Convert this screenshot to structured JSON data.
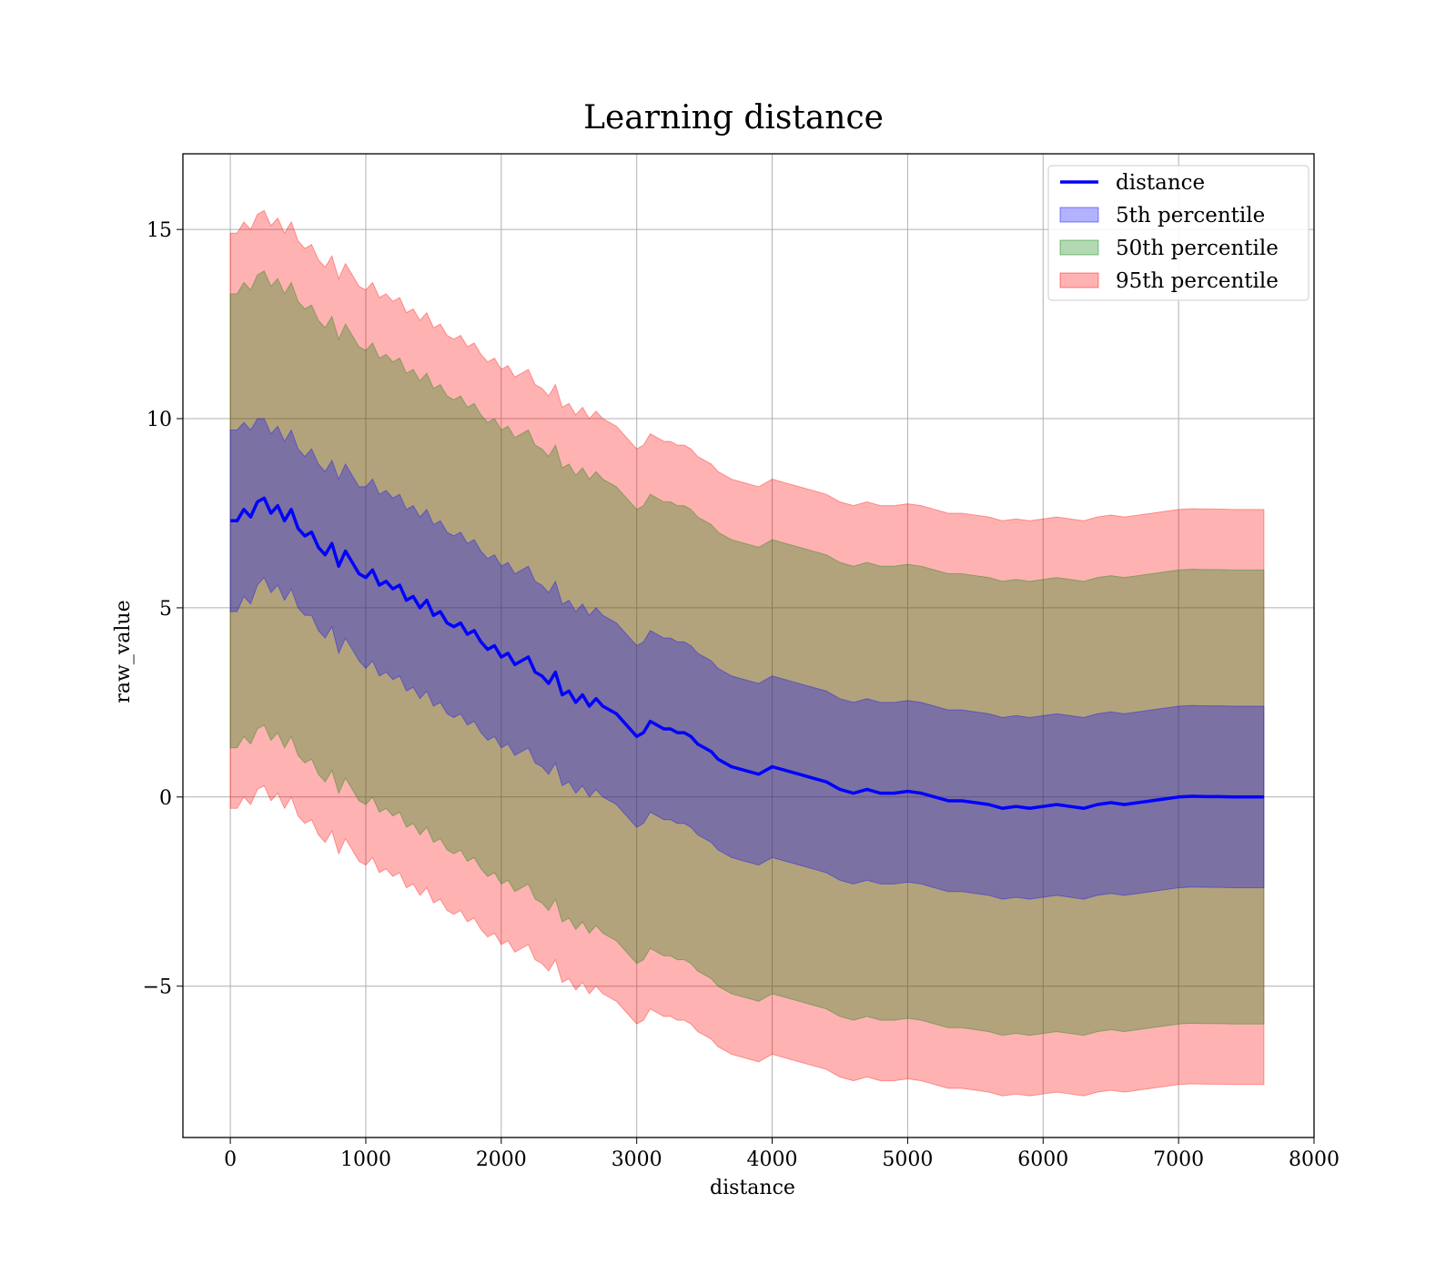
{
  "chart_data": {
    "type": "line",
    "title": "Learning distance",
    "xlabel": "distance",
    "ylabel": "raw_value",
    "xlim": [
      -350,
      8000
    ],
    "ylim": [
      -9.0,
      17.0
    ],
    "xticks": [
      0,
      1000,
      2000,
      3000,
      4000,
      5000,
      6000,
      7000,
      8000
    ],
    "xtick_labels": [
      "0",
      "1000",
      "2000",
      "3000",
      "4000",
      "5000",
      "6000",
      "7000",
      "8000"
    ],
    "yticks": [
      -5,
      0,
      5,
      10,
      15
    ],
    "ytick_labels": [
      "−5",
      "0",
      "5",
      "10",
      "15"
    ],
    "grid": true,
    "legend_position": "top-right",
    "series": [
      {
        "name": "distance",
        "kind": "line",
        "color": "#0000ff",
        "x": [
          0,
          50,
          100,
          150,
          200,
          250,
          300,
          350,
          400,
          450,
          500,
          550,
          600,
          650,
          700,
          750,
          800,
          850,
          900,
          950,
          1000,
          1050,
          1100,
          1150,
          1200,
          1250,
          1300,
          1350,
          1400,
          1450,
          1500,
          1550,
          1600,
          1650,
          1700,
          1750,
          1800,
          1850,
          1900,
          1950,
          2000,
          2050,
          2100,
          2150,
          2200,
          2250,
          2300,
          2350,
          2400,
          2450,
          2500,
          2550,
          2600,
          2650,
          2700,
          2750,
          2800,
          2850,
          2900,
          2950,
          3000,
          3050,
          3100,
          3150,
          3200,
          3250,
          3300,
          3350,
          3400,
          3450,
          3500,
          3550,
          3600,
          3700,
          3800,
          3900,
          4000,
          4100,
          4200,
          4300,
          4400,
          4500,
          4600,
          4700,
          4800,
          4900,
          5000,
          5100,
          5200,
          5300,
          5400,
          5500,
          5600,
          5700,
          5800,
          5900,
          6000,
          6100,
          6200,
          6300,
          6400,
          6500,
          6600,
          6700,
          6800,
          6900,
          7000,
          7100,
          7200,
          7300,
          7400,
          7500,
          7630
        ],
        "y": [
          7.3,
          7.3,
          7.6,
          7.4,
          7.8,
          7.9,
          7.5,
          7.7,
          7.3,
          7.6,
          7.1,
          6.9,
          7.0,
          6.6,
          6.4,
          6.7,
          6.1,
          6.5,
          6.2,
          5.9,
          5.8,
          6.0,
          5.6,
          5.7,
          5.5,
          5.6,
          5.2,
          5.3,
          5.0,
          5.2,
          4.8,
          4.9,
          4.6,
          4.5,
          4.6,
          4.3,
          4.4,
          4.1,
          3.9,
          4.0,
          3.7,
          3.8,
          3.5,
          3.6,
          3.7,
          3.3,
          3.2,
          3.0,
          3.3,
          2.7,
          2.8,
          2.5,
          2.7,
          2.4,
          2.6,
          2.4,
          2.3,
          2.2,
          2.0,
          1.8,
          1.6,
          1.7,
          2.0,
          1.9,
          1.8,
          1.8,
          1.7,
          1.7,
          1.6,
          1.4,
          1.3,
          1.2,
          1.0,
          0.8,
          0.7,
          0.6,
          0.8,
          0.7,
          0.6,
          0.5,
          0.4,
          0.2,
          0.1,
          0.2,
          0.1,
          0.1,
          0.15,
          0.1,
          0.0,
          -0.1,
          -0.1,
          -0.15,
          -0.2,
          -0.3,
          -0.25,
          -0.3,
          -0.25,
          -0.2,
          -0.25,
          -0.3,
          -0.2,
          -0.15,
          -0.2,
          -0.15,
          -0.1,
          -0.05,
          0.0,
          0.02,
          0.01,
          0.01,
          0.0,
          0.0,
          0.0
        ]
      },
      {
        "name": "5th percentile",
        "kind": "band",
        "color": "#0000ff",
        "half_width": [
          2.4,
          2.4,
          2.3,
          2.3,
          2.2,
          2.1,
          2.1,
          2.1,
          2.1,
          2.1,
          2.1,
          2.1,
          2.2,
          2.2,
          2.2,
          2.2,
          2.3,
          2.3,
          2.3,
          2.3,
          2.4,
          2.4,
          2.4,
          2.4,
          2.4,
          2.4,
          2.4,
          2.4,
          2.4,
          2.4,
          2.4,
          2.4,
          2.4,
          2.4,
          2.4,
          2.4,
          2.4,
          2.4,
          2.4,
          2.4,
          2.4,
          2.4,
          2.4,
          2.4,
          2.4,
          2.4,
          2.4,
          2.4,
          2.4,
          2.4,
          2.4,
          2.4,
          2.4,
          2.4,
          2.4,
          2.4,
          2.4,
          2.4,
          2.4,
          2.4,
          2.4,
          2.4,
          2.4,
          2.4,
          2.4,
          2.4,
          2.4,
          2.4,
          2.4,
          2.4,
          2.4,
          2.4,
          2.4,
          2.4,
          2.4,
          2.4,
          2.4,
          2.4,
          2.4,
          2.4,
          2.4,
          2.4,
          2.4,
          2.4,
          2.4,
          2.4,
          2.4,
          2.4,
          2.4,
          2.4,
          2.4,
          2.4,
          2.4,
          2.4,
          2.4,
          2.4,
          2.4,
          2.4,
          2.4,
          2.4,
          2.4,
          2.4,
          2.4,
          2.4,
          2.4,
          2.4,
          2.4,
          2.4,
          2.4,
          2.4,
          2.4,
          2.4,
          2.4
        ]
      },
      {
        "name": "50th percentile",
        "kind": "band",
        "color": "#008000",
        "half_width": [
          6.0,
          6.0,
          6.0,
          6.0,
          6.0,
          6.0,
          6.0,
          6.0,
          6.0,
          6.0,
          6.0,
          6.0,
          6.0,
          6.0,
          6.0,
          6.0,
          6.0,
          6.0,
          6.0,
          6.0,
          6.0,
          6.0,
          6.0,
          6.0,
          6.0,
          6.0,
          6.0,
          6.0,
          6.0,
          6.0,
          6.0,
          6.0,
          6.0,
          6.0,
          6.0,
          6.0,
          6.0,
          6.0,
          6.0,
          6.0,
          6.0,
          6.0,
          6.0,
          6.0,
          6.0,
          6.0,
          6.0,
          6.0,
          6.0,
          6.0,
          6.0,
          6.0,
          6.0,
          6.0,
          6.0,
          6.0,
          6.0,
          6.0,
          6.0,
          6.0,
          6.0,
          6.0,
          6.0,
          6.0,
          6.0,
          6.0,
          6.0,
          6.0,
          6.0,
          6.0,
          6.0,
          6.0,
          6.0,
          6.0,
          6.0,
          6.0,
          6.0,
          6.0,
          6.0,
          6.0,
          6.0,
          6.0,
          6.0,
          6.0,
          6.0,
          6.0,
          6.0,
          6.0,
          6.0,
          6.0,
          6.0,
          6.0,
          6.0,
          6.0,
          6.0,
          6.0,
          6.0,
          6.0,
          6.0,
          6.0,
          6.0,
          6.0,
          6.0,
          6.0,
          6.0,
          6.0,
          6.0,
          6.0,
          6.0,
          6.0,
          6.0,
          6.0,
          6.0
        ]
      },
      {
        "name": "95th percentile",
        "kind": "band",
        "color": "#ff0000",
        "half_width": [
          7.6,
          7.6,
          7.6,
          7.6,
          7.6,
          7.6,
          7.6,
          7.6,
          7.6,
          7.6,
          7.6,
          7.6,
          7.6,
          7.6,
          7.6,
          7.6,
          7.6,
          7.6,
          7.6,
          7.6,
          7.6,
          7.6,
          7.6,
          7.6,
          7.6,
          7.6,
          7.6,
          7.6,
          7.6,
          7.6,
          7.6,
          7.6,
          7.6,
          7.6,
          7.6,
          7.6,
          7.6,
          7.6,
          7.6,
          7.6,
          7.6,
          7.6,
          7.6,
          7.6,
          7.6,
          7.6,
          7.6,
          7.6,
          7.6,
          7.6,
          7.6,
          7.6,
          7.6,
          7.6,
          7.6,
          7.6,
          7.6,
          7.6,
          7.6,
          7.6,
          7.6,
          7.6,
          7.6,
          7.6,
          7.6,
          7.6,
          7.6,
          7.6,
          7.6,
          7.6,
          7.6,
          7.6,
          7.6,
          7.6,
          7.6,
          7.6,
          7.6,
          7.6,
          7.6,
          7.6,
          7.6,
          7.6,
          7.6,
          7.6,
          7.6,
          7.6,
          7.6,
          7.6,
          7.6,
          7.6,
          7.6,
          7.6,
          7.6,
          7.6,
          7.6,
          7.6,
          7.6,
          7.6,
          7.6,
          7.6,
          7.6,
          7.6,
          7.6,
          7.6,
          7.6,
          7.6,
          7.6,
          7.6,
          7.6,
          7.6,
          7.6,
          7.6,
          7.6
        ]
      }
    ],
    "legend": [
      {
        "label": "distance",
        "kind": "line",
        "color": "#0000ff"
      },
      {
        "label": "5th percentile",
        "kind": "patch",
        "color": "#0000ff"
      },
      {
        "label": "50th percentile",
        "kind": "patch",
        "color": "#008000"
      },
      {
        "label": "95th percentile",
        "kind": "patch",
        "color": "#ff0000"
      }
    ]
  }
}
